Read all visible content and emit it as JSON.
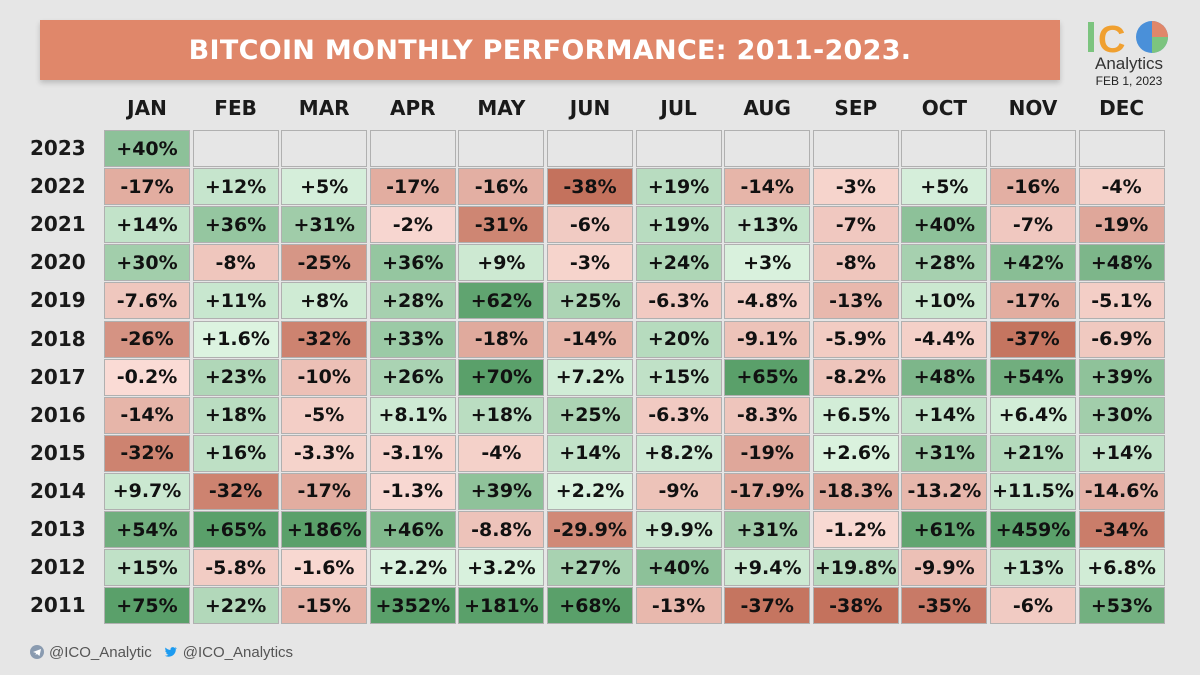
{
  "title": "BITCOIN MONTHLY PERFORMANCE: 2011-2023.",
  "logo": {
    "mark": "ICO",
    "subtitle": "Analytics",
    "date": "FEB 1, 2023"
  },
  "footer": {
    "telegram": "@ICO_Analytic",
    "twitter": "@ICO_Analytics"
  },
  "icons": {
    "telegram": "telegram-icon",
    "twitter": "twitter-bird-icon",
    "logo_pie": "pie-chart-icon"
  },
  "colors": {
    "title_bar": "#e0876a",
    "positive_strong": "#5aa06a",
    "positive_light": "#dff5e3",
    "negative_light": "#fadcd6",
    "negative_strong": "#c4725d",
    "empty": "#e6e6e6"
  },
  "chart_data": {
    "type": "heatmap",
    "title": "BITCOIN MONTHLY PERFORMANCE: 2011-2023.",
    "columns": [
      "JAN",
      "FEB",
      "MAR",
      "APR",
      "MAY",
      "JUN",
      "JUL",
      "AUG",
      "SEP",
      "OCT",
      "NOV",
      "DEC"
    ],
    "rows": [
      {
        "year": "2023",
        "values": [
          "+40%",
          "",
          "",
          "",
          "",
          "",
          "",
          "",
          "",
          "",
          "",
          ""
        ]
      },
      {
        "year": "2022",
        "values": [
          "-17%",
          "+12%",
          "+5%",
          "-17%",
          "-16%",
          "-38%",
          "+19%",
          "-14%",
          "-3%",
          "+5%",
          "-16%",
          "-4%"
        ]
      },
      {
        "year": "2021",
        "values": [
          "+14%",
          "+36%",
          "+31%",
          "-2%",
          "-31%",
          "-6%",
          "+19%",
          "+13%",
          "-7%",
          "+40%",
          "-7%",
          "-19%"
        ]
      },
      {
        "year": "2020",
        "values": [
          "+30%",
          "-8%",
          "-25%",
          "+36%",
          "+9%",
          "-3%",
          "+24%",
          "+3%",
          "-8%",
          "+28%",
          "+42%",
          "+48%"
        ]
      },
      {
        "year": "2019",
        "values": [
          "-7.6%",
          "+11%",
          "+8%",
          "+28%",
          "+62%",
          "+25%",
          "-6.3%",
          "-4.8%",
          "-13%",
          "+10%",
          "-17%",
          "-5.1%"
        ]
      },
      {
        "year": "2018",
        "values": [
          "-26%",
          "+1.6%",
          "-32%",
          "+33%",
          "-18%",
          "-14%",
          "+20%",
          "-9.1%",
          "-5.9%",
          "-4.4%",
          "-37%",
          "-6.9%"
        ]
      },
      {
        "year": "2017",
        "values": [
          "-0.2%",
          "+23%",
          "-10%",
          "+26%",
          "+70%",
          "+7.2%",
          "+15%",
          "+65%",
          "-8.2%",
          "+48%",
          "+54%",
          "+39%"
        ]
      },
      {
        "year": "2016",
        "values": [
          "-14%",
          "+18%",
          "-5%",
          "+8.1%",
          "+18%",
          "+25%",
          "-6.3%",
          "-8.3%",
          "+6.5%",
          "+14%",
          "+6.4%",
          "+30%"
        ]
      },
      {
        "year": "2015",
        "values": [
          "-32%",
          "+16%",
          "-3.3%",
          "-3.1%",
          "-4%",
          "+14%",
          "+8.2%",
          "-19%",
          "+2.6%",
          "+31%",
          "+21%",
          "+14%"
        ]
      },
      {
        "year": "2014",
        "values": [
          "+9.7%",
          "-32%",
          "-17%",
          "-1.3%",
          "+39%",
          "+2.2%",
          "-9%",
          "-17.9%",
          "-18.3%",
          "-13.2%",
          "+11.5%",
          "-14.6%"
        ]
      },
      {
        "year": "2013",
        "values": [
          "+54%",
          "+65%",
          "+186%",
          "+46%",
          "-8.8%",
          "-29.9%",
          "+9.9%",
          "+31%",
          "-1.2%",
          "+61%",
          "+459%",
          "-34%"
        ]
      },
      {
        "year": "2012",
        "values": [
          "+15%",
          "-5.8%",
          "-1.6%",
          "+2.2%",
          "+3.2%",
          "+27%",
          "+40%",
          "+9.4%",
          "+19.8%",
          "-9.9%",
          "+13%",
          "+6.8%"
        ]
      },
      {
        "year": "2011",
        "values": [
          "+75%",
          "+22%",
          "-15%",
          "+352%",
          "+181%",
          "+68%",
          "-13%",
          "-37%",
          "-38%",
          "-35%",
          "-6%",
          "+53%"
        ]
      }
    ]
  }
}
